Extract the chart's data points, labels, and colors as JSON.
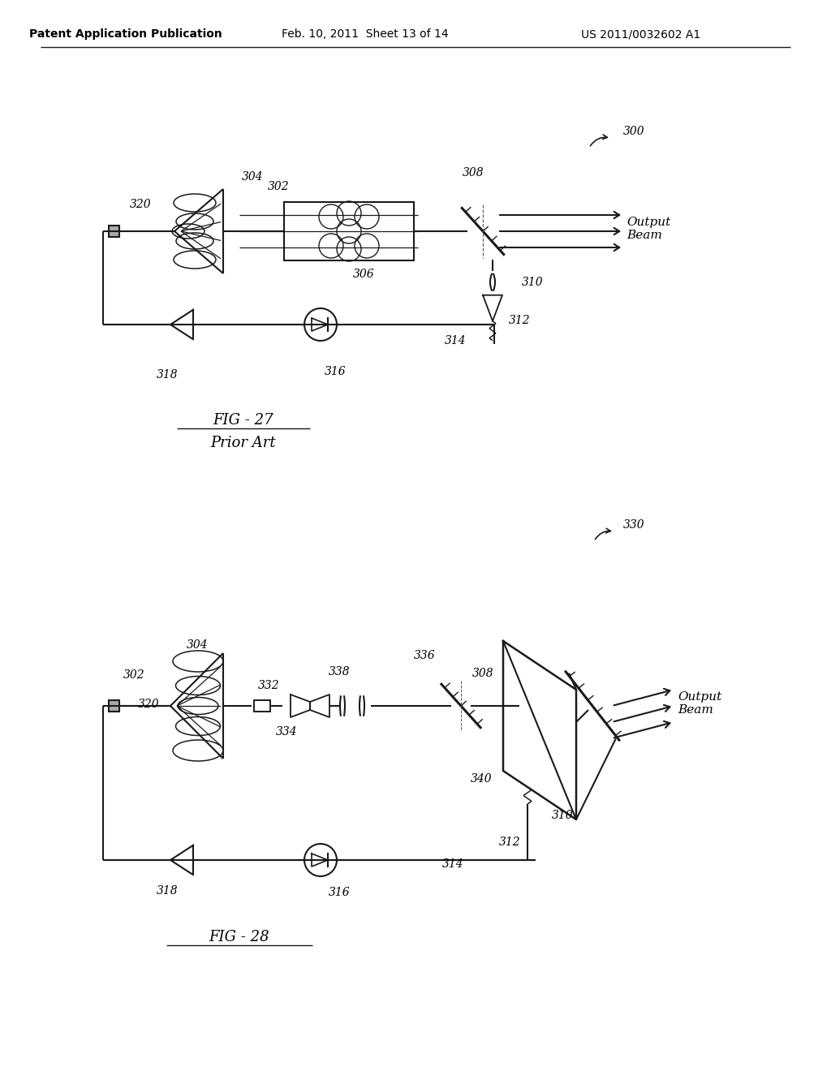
{
  "header_left": "Patent Application Publication",
  "header_mid": "Feb. 10, 2011  Sheet 13 of 14",
  "header_right": "US 2011/0032602 A1",
  "fig27_title": "FIG - 27",
  "fig27_subtitle": "Prior Art",
  "fig28_title": "FIG - 28",
  "ref_300": "300",
  "ref_302": "302",
  "ref_304": "304",
  "ref_306": "306",
  "ref_308": "308",
  "ref_310": "310",
  "ref_312": "312",
  "ref_314": "314",
  "ref_316": "316",
  "ref_318": "318",
  "ref_320": "320",
  "ref_330": "330",
  "ref_332": "332",
  "ref_334": "334",
  "ref_336": "336",
  "ref_338": "338",
  "ref_340": "340",
  "output_beam": "Output\nBeam",
  "bg": "#ffffff",
  "lc": "#1a1a1a",
  "lw": 1.5
}
